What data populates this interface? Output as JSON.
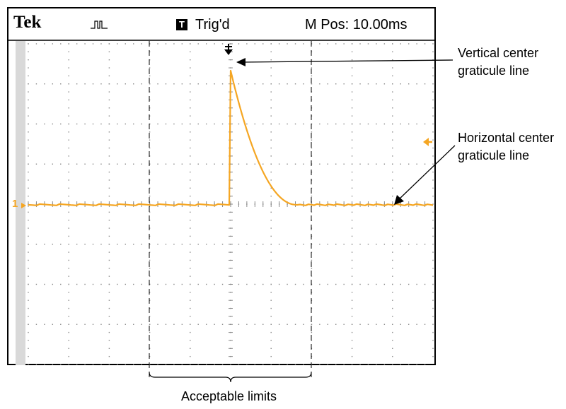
{
  "header": {
    "brand": "Tek",
    "trigger_box_letter": "T",
    "trigger_status": "Trig'd",
    "m_pos": "M Pos: 10.00ms"
  },
  "callouts": {
    "vertical_center": [
      "Vertical center",
      "graticule line"
    ],
    "horizontal_center": [
      "Horizontal center",
      "graticule line"
    ],
    "acceptable_limits": "Acceptable limits"
  },
  "channel_label": "1",
  "colors": {
    "trace": "#f5a623",
    "frame": "#000000",
    "graticule": "#888888"
  }
}
